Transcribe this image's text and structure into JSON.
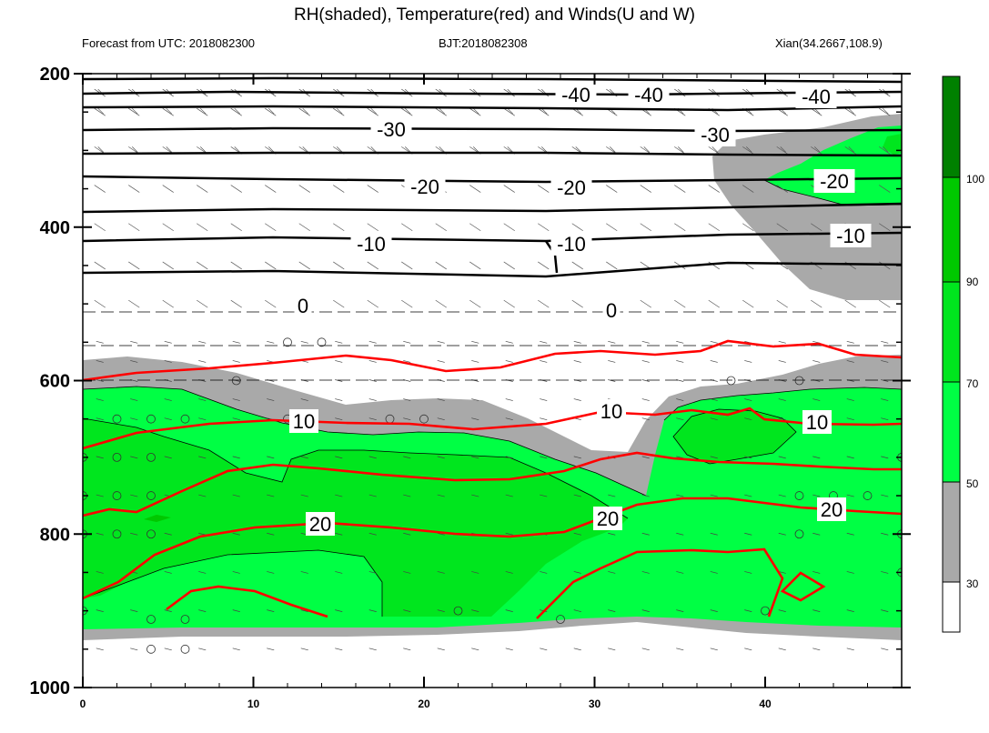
{
  "header": {
    "title": "RH(shaded), Temperature(red) and Winds(U and W)",
    "left": "Forecast from UTC: 2018082300",
    "center": "BJT:2018082308",
    "right": "Xian(34.2667,108.9)"
  },
  "colors": {
    "gray": "#a9a9a9",
    "green_light": "#00ff44",
    "green_mid": "#00e61e",
    "green_dark": "#00c800",
    "green_darkest": "#008000",
    "temperature": "#ff0000",
    "contour_black": "#000000"
  },
  "chart_data": {
    "type": "cross-section",
    "title": "RH(shaded), Temperature(red) and Winds(U and W)",
    "x_ticks": [
      "0",
      "10",
      "20",
      "30",
      "40"
    ],
    "x_range": [
      0,
      48
    ],
    "y_ticks": [
      "200",
      "400",
      "600",
      "800",
      "1000"
    ],
    "y_range": [
      200,
      1000
    ],
    "y_inverted": true,
    "colorbar": {
      "labels": [
        "30",
        "50",
        "70",
        "90",
        "100"
      ],
      "levels": [
        30,
        50,
        70,
        90,
        100
      ],
      "colors": [
        "#ffffff",
        "#a9a9a9",
        "#00ff44",
        "#00e61e",
        "#00c800",
        "#008000"
      ]
    },
    "temperature_labels": [
      "10",
      "20",
      "10",
      "20",
      "10",
      "20"
    ],
    "black_contour_labels": [
      "-40",
      "-40",
      "-40",
      "-30",
      "-30",
      "-20",
      "-20",
      "-20",
      "-10",
      "-10",
      "-10",
      "0",
      "0"
    ]
  }
}
